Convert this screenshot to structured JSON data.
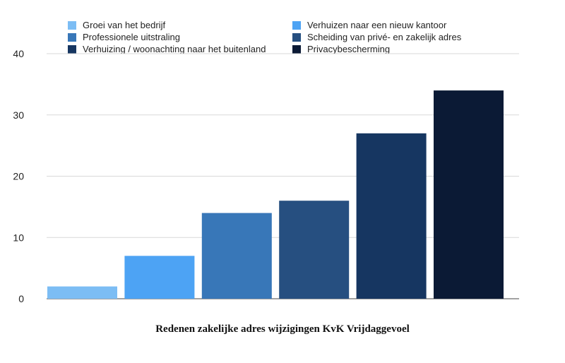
{
  "chart_data": {
    "type": "bar",
    "title": "Redenen zakelijke adres wijzigingen KvK Vrijdaggevoel",
    "xlabel": "",
    "ylabel": "",
    "ylim": [
      0,
      40
    ],
    "yticks": [
      0,
      10,
      20,
      30,
      40
    ],
    "grid": true,
    "legend_position": "top",
    "categories": [
      "Groei van het bedrijf",
      "Verhuizen naar een nieuw kantoor",
      "Professionele uitstraling",
      "Scheiding van privé- en zakelijk adres",
      "Verhuizing / woonachting naar het buitenland",
      "Privacybescherming"
    ],
    "values": [
      2,
      7,
      14,
      16,
      27,
      34
    ],
    "colors": [
      "#7cbdf4",
      "#4da3f4",
      "#3877b8",
      "#264f80",
      "#163661",
      "#0b1a35"
    ]
  }
}
